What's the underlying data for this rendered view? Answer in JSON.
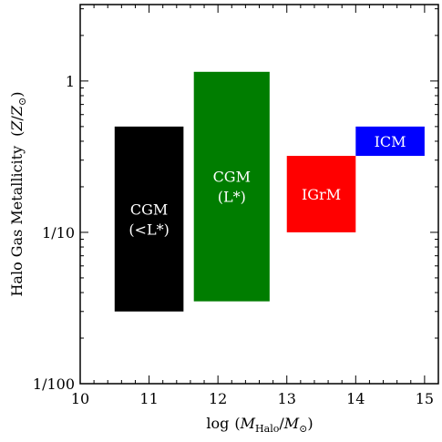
{
  "chart_data": {
    "type": "range-bar",
    "xlabel": "log (M_Halo / M_⊙)",
    "ylabel": "Halo Gas Metallicity  (Z / Z_⊙)",
    "xlim": [
      10,
      15.2
    ],
    "ylim": [
      0.01,
      3.2
    ],
    "yscale": "log",
    "x_ticks": [
      10,
      11,
      12,
      13,
      14,
      15
    ],
    "x_tick_labels": [
      "10",
      "11",
      "12",
      "13",
      "14",
      "15"
    ],
    "y_ticks": [
      0.01,
      0.1,
      1
    ],
    "y_tick_labels": [
      "1/100",
      "1/10",
      "1"
    ],
    "boxes": [
      {
        "label_lines": [
          "CGM",
          "(<L*)"
        ],
        "x0": 10.5,
        "x1": 11.5,
        "y0": 0.03,
        "y1": 0.5,
        "color": "#000000",
        "text_color": "#ffffff"
      },
      {
        "label_lines": [
          "CGM",
          "(L*)"
        ],
        "x0": 11.65,
        "x1": 12.75,
        "y0": 0.035,
        "y1": 1.15,
        "color": "#007d00",
        "text_color": "#ffffff"
      },
      {
        "label_lines": [
          "IGrM"
        ],
        "x0": 13.0,
        "x1": 14.0,
        "y0": 0.1,
        "y1": 0.32,
        "color": "#ff0000",
        "text_color": "#ffffff"
      },
      {
        "label_lines": [
          "ICM"
        ],
        "x0": 14.0,
        "x1": 15.0,
        "y0": 0.32,
        "y1": 0.5,
        "color": "#0000ff",
        "text_color": "#ffffff"
      }
    ]
  }
}
